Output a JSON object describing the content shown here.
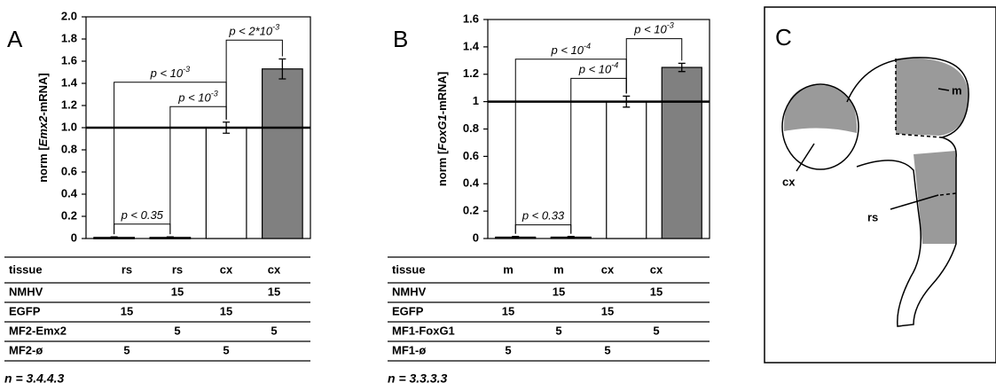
{
  "chart_data": [
    {
      "type": "bar",
      "panel_label": "A",
      "y_label": {
        "prefix": "norm [",
        "gene": "Emx2",
        "suffix": "-mRNA]"
      },
      "categories": [
        null,
        null,
        null,
        null
      ],
      "values": [
        0.01,
        0.01,
        1.0,
        1.53
      ],
      "errors": [
        0.005,
        0.005,
        0.05,
        0.09
      ],
      "colors": [
        "#333333",
        "#333333",
        "#ffffff",
        "#808080"
      ],
      "hline": 1,
      "ylim": [
        0,
        2
      ],
      "yticks": [
        0,
        0.2,
        0.4,
        0.6,
        0.8,
        {
          "value": 1,
          "label": "1.0"
        },
        1.2,
        1.4,
        1.6,
        1.8,
        {
          "value": 2,
          "label": "2.0"
        }
      ],
      "brackets": [
        {
          "from": 0,
          "to": 1,
          "text": "p < 0.35"
        },
        {
          "from": 0,
          "to": 2,
          "text": "p < 10",
          "superscript": "-3"
        },
        {
          "from": 1,
          "to": 2,
          "text": "p < 10",
          "superscript": "-3"
        },
        {
          "from": 2,
          "to": 3,
          "text": "p < 2*10",
          "superscript": "-3"
        }
      ]
    },
    {
      "type": "bar",
      "panel_label": "B",
      "y_label": {
        "prefix": "norm [",
        "gene": "FoxG1",
        "suffix": "-mRNA]"
      },
      "categories": [
        null,
        null,
        null,
        null
      ],
      "values": [
        0.01,
        0.01,
        1.0,
        1.25
      ],
      "errors": [
        0.005,
        0.005,
        0.04,
        0.03
      ],
      "colors": [
        "#333333",
        "#333333",
        "#ffffff",
        "#808080"
      ],
      "hline": 1,
      "ylim": [
        0,
        1.6
      ],
      "yticks": [
        0,
        0.2,
        0.4,
        0.6,
        0.8,
        1,
        1.2,
        1.4,
        1.6
      ],
      "brackets": [
        {
          "from": 0,
          "to": 1,
          "text": "p < 0.33"
        },
        {
          "from": 0,
          "to": 2,
          "text": "p < 10",
          "superscript": "-4"
        },
        {
          "from": 1,
          "to": 2,
          "text": "p < 10",
          "superscript": "-4"
        },
        {
          "from": 2,
          "to": 3,
          "text": "p < 10",
          "superscript": "-3"
        }
      ]
    }
  ],
  "tables": [
    {
      "header": [
        "tissue",
        "rs",
        "rs",
        "cx",
        "cx"
      ],
      "rows": [
        [
          "NMHV",
          null,
          15,
          null,
          15
        ],
        [
          "EGFP",
          15,
          null,
          15,
          null
        ],
        [
          "MF2-Emx2",
          null,
          5,
          null,
          5
        ],
        [
          "MF2-ø",
          5,
          null,
          5,
          null
        ]
      ],
      "n": "n = 3.4.4.3"
    },
    {
      "header": [
        "tissue",
        "m",
        "m",
        "cx",
        "cx"
      ],
      "rows": [
        [
          "NMHV",
          null,
          15,
          null,
          15
        ],
        [
          "EGFP",
          15,
          null,
          15,
          null
        ],
        [
          "MF1-FoxG1",
          null,
          5,
          null,
          5
        ],
        [
          "MF1-ø",
          5,
          null,
          5,
          null
        ]
      ],
      "n": "n = 3.3.3.3"
    }
  ],
  "diagram": {
    "panel_label": "C",
    "labels": [
      "m",
      "cx",
      "rs"
    ]
  }
}
